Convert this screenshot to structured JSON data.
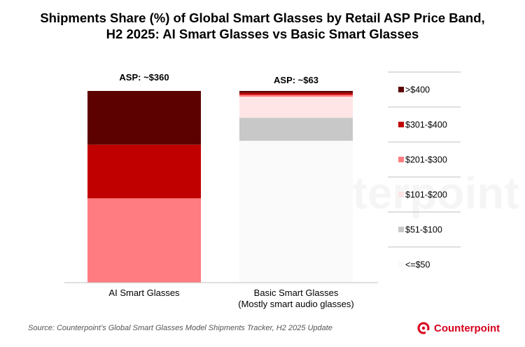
{
  "title_line1": "Shipments Share (%) of Global Smart Glasses by Retail ASP Price Band,",
  "title_line2": "H2 2025: AI Smart Glasses vs Basic Smart Glasses",
  "source": "Source: Counterpoint’s Global Smart Glasses Model Shipments Tracker, H2 2025 Update",
  "brand": "Counterpoint",
  "watermark": "Counterpoint",
  "colors": {
    ">$400": "#5c0000",
    "$301-$400": "#c00000",
    "$201-$300": "#ff7c80",
    "$101-$200": "#ffe5e5",
    "$51-$100": "#c8c8c8",
    "<=$50": "#fafafa"
  },
  "chart_data": {
    "type": "bar",
    "stacked": true,
    "normalized": true,
    "categories": [
      "AI Smart Glasses",
      "Basic Smart Glasses\n(Mostly smart audio glasses)"
    ],
    "asp_labels": [
      "ASP: ~$360",
      "ASP: ~$63"
    ],
    "series": [
      {
        "name": "<=$50",
        "values": [
          0,
          74
        ]
      },
      {
        "name": "$51-$100",
        "values": [
          0,
          12
        ]
      },
      {
        "name": "$101-$200",
        "values": [
          0,
          11
        ]
      },
      {
        "name": "$201-$300",
        "values": [
          44,
          1
        ]
      },
      {
        "name": "$301-$400",
        "values": [
          28,
          1
        ]
      },
      {
        "name": ">$400",
        "values": [
          28,
          1
        ]
      }
    ],
    "ylim": [
      0,
      100
    ],
    "legend_position": "right",
    "legend_order": [
      ">$400",
      "$301-$400",
      "$201-$300",
      "$101-$200",
      "$51-$100",
      "<=$50"
    ]
  }
}
